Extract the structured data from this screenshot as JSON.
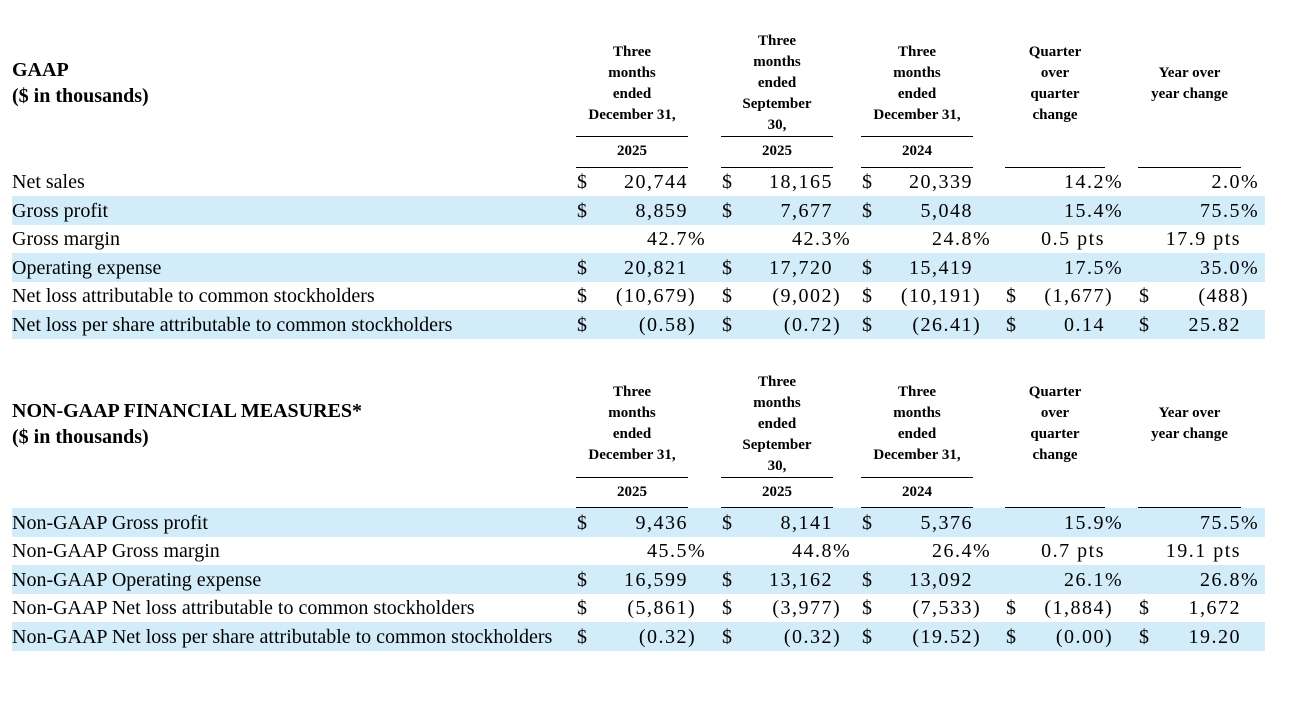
{
  "sections": [
    {
      "title": "GAAP",
      "subtitle": "($ in thousands)",
      "columns": [
        {
          "header": "Three\nmonths\nended\nDecember 31,",
          "year": "2025"
        },
        {
          "header": "Three\nmonths\nended\nSeptember\n30,",
          "year": "2025"
        },
        {
          "header": "Three\nmonths\nended\nDecember 31,",
          "year": "2024"
        },
        {
          "header": "Quarter\nover\nquarter\nchange",
          "year": ""
        },
        {
          "header": "Year over\nyear change",
          "year": ""
        }
      ],
      "rows": [
        {
          "label": "Net sales",
          "values": [
            [
              "$",
              "20,744"
            ],
            [
              "$",
              "18,165"
            ],
            [
              "$",
              "20,339"
            ],
            [
              "",
              "14.2%"
            ],
            [
              "",
              "2.0%"
            ]
          ]
        },
        {
          "label": "Gross profit",
          "values": [
            [
              "$",
              "8,859"
            ],
            [
              "$",
              "7,677"
            ],
            [
              "$",
              "5,048"
            ],
            [
              "",
              "15.4%"
            ],
            [
              "",
              "75.5%"
            ]
          ]
        },
        {
          "label": "Gross margin",
          "values": [
            [
              "",
              "42.7%"
            ],
            [
              "",
              "42.3%"
            ],
            [
              "",
              "24.8%"
            ],
            [
              "",
              "0.5 pts"
            ],
            [
              "",
              "17.9 pts"
            ]
          ]
        },
        {
          "label": "Operating expense",
          "values": [
            [
              "$",
              "20,821"
            ],
            [
              "$",
              "17,720"
            ],
            [
              "$",
              "15,419"
            ],
            [
              "",
              "17.5%"
            ],
            [
              "",
              "35.0%"
            ]
          ]
        },
        {
          "label": "Net loss attributable to common stockholders",
          "values": [
            [
              "$",
              "(10,679)"
            ],
            [
              "$",
              "(9,002)"
            ],
            [
              "$",
              "(10,191)"
            ],
            [
              "$",
              "(1,677)"
            ],
            [
              "$",
              "(488)"
            ]
          ]
        },
        {
          "label": "Net loss per share attributable to common stockholders",
          "values": [
            [
              "$",
              "(0.58)"
            ],
            [
              "$",
              "(0.72)"
            ],
            [
              "$",
              "(26.41)"
            ],
            [
              "$",
              "0.14"
            ],
            [
              "$",
              "25.82"
            ]
          ]
        }
      ]
    },
    {
      "title": "NON-GAAP FINANCIAL MEASURES*",
      "subtitle": "($ in thousands)",
      "columns": [
        {
          "header": "Three\nmonths\nended\nDecember 31,",
          "year": "2025"
        },
        {
          "header": "Three\nmonths\nended\nSeptember\n30,",
          "year": "2025"
        },
        {
          "header": "Three\nmonths\nended\nDecember 31,",
          "year": "2024"
        },
        {
          "header": "Quarter\nover\nquarter\nchange",
          "year": ""
        },
        {
          "header": "Year over\nyear change",
          "year": ""
        }
      ],
      "rows": [
        {
          "label": "Non-GAAP Gross profit",
          "values": [
            [
              "$",
              "9,436"
            ],
            [
              "$",
              "8,141"
            ],
            [
              "$",
              "5,376"
            ],
            [
              "",
              "15.9%"
            ],
            [
              "",
              "75.5%"
            ]
          ]
        },
        {
          "label": "Non-GAAP Gross margin",
          "values": [
            [
              "",
              "45.5%"
            ],
            [
              "",
              "44.8%"
            ],
            [
              "",
              "26.4%"
            ],
            [
              "",
              "0.7 pts"
            ],
            [
              "",
              "19.1 pts"
            ]
          ]
        },
        {
          "label": "Non-GAAP Operating expense",
          "values": [
            [
              "$",
              "16,599"
            ],
            [
              "$",
              "13,162"
            ],
            [
              "$",
              "13,092"
            ],
            [
              "",
              "26.1%"
            ],
            [
              "",
              "26.8%"
            ]
          ]
        },
        {
          "label": "Non-GAAP Net loss attributable to common stockholders",
          "values": [
            [
              "$",
              "(5,861)"
            ],
            [
              "$",
              "(3,977)"
            ],
            [
              "$",
              "(7,533)"
            ],
            [
              "$",
              "(1,884)"
            ],
            [
              "$",
              "1,672"
            ]
          ]
        },
        {
          "label": "Non-GAAP Net loss per share attributable to common stockholders",
          "values": [
            [
              "$",
              "(0.32)"
            ],
            [
              "$",
              "(0.32)"
            ],
            [
              "$",
              "(19.52)"
            ],
            [
              "$",
              "(0.00)"
            ],
            [
              "$",
              "19.20"
            ]
          ]
        }
      ]
    }
  ],
  "colors": {
    "shaded_row": "#d2ecf9",
    "text": "#000000",
    "rule": "#000000"
  }
}
